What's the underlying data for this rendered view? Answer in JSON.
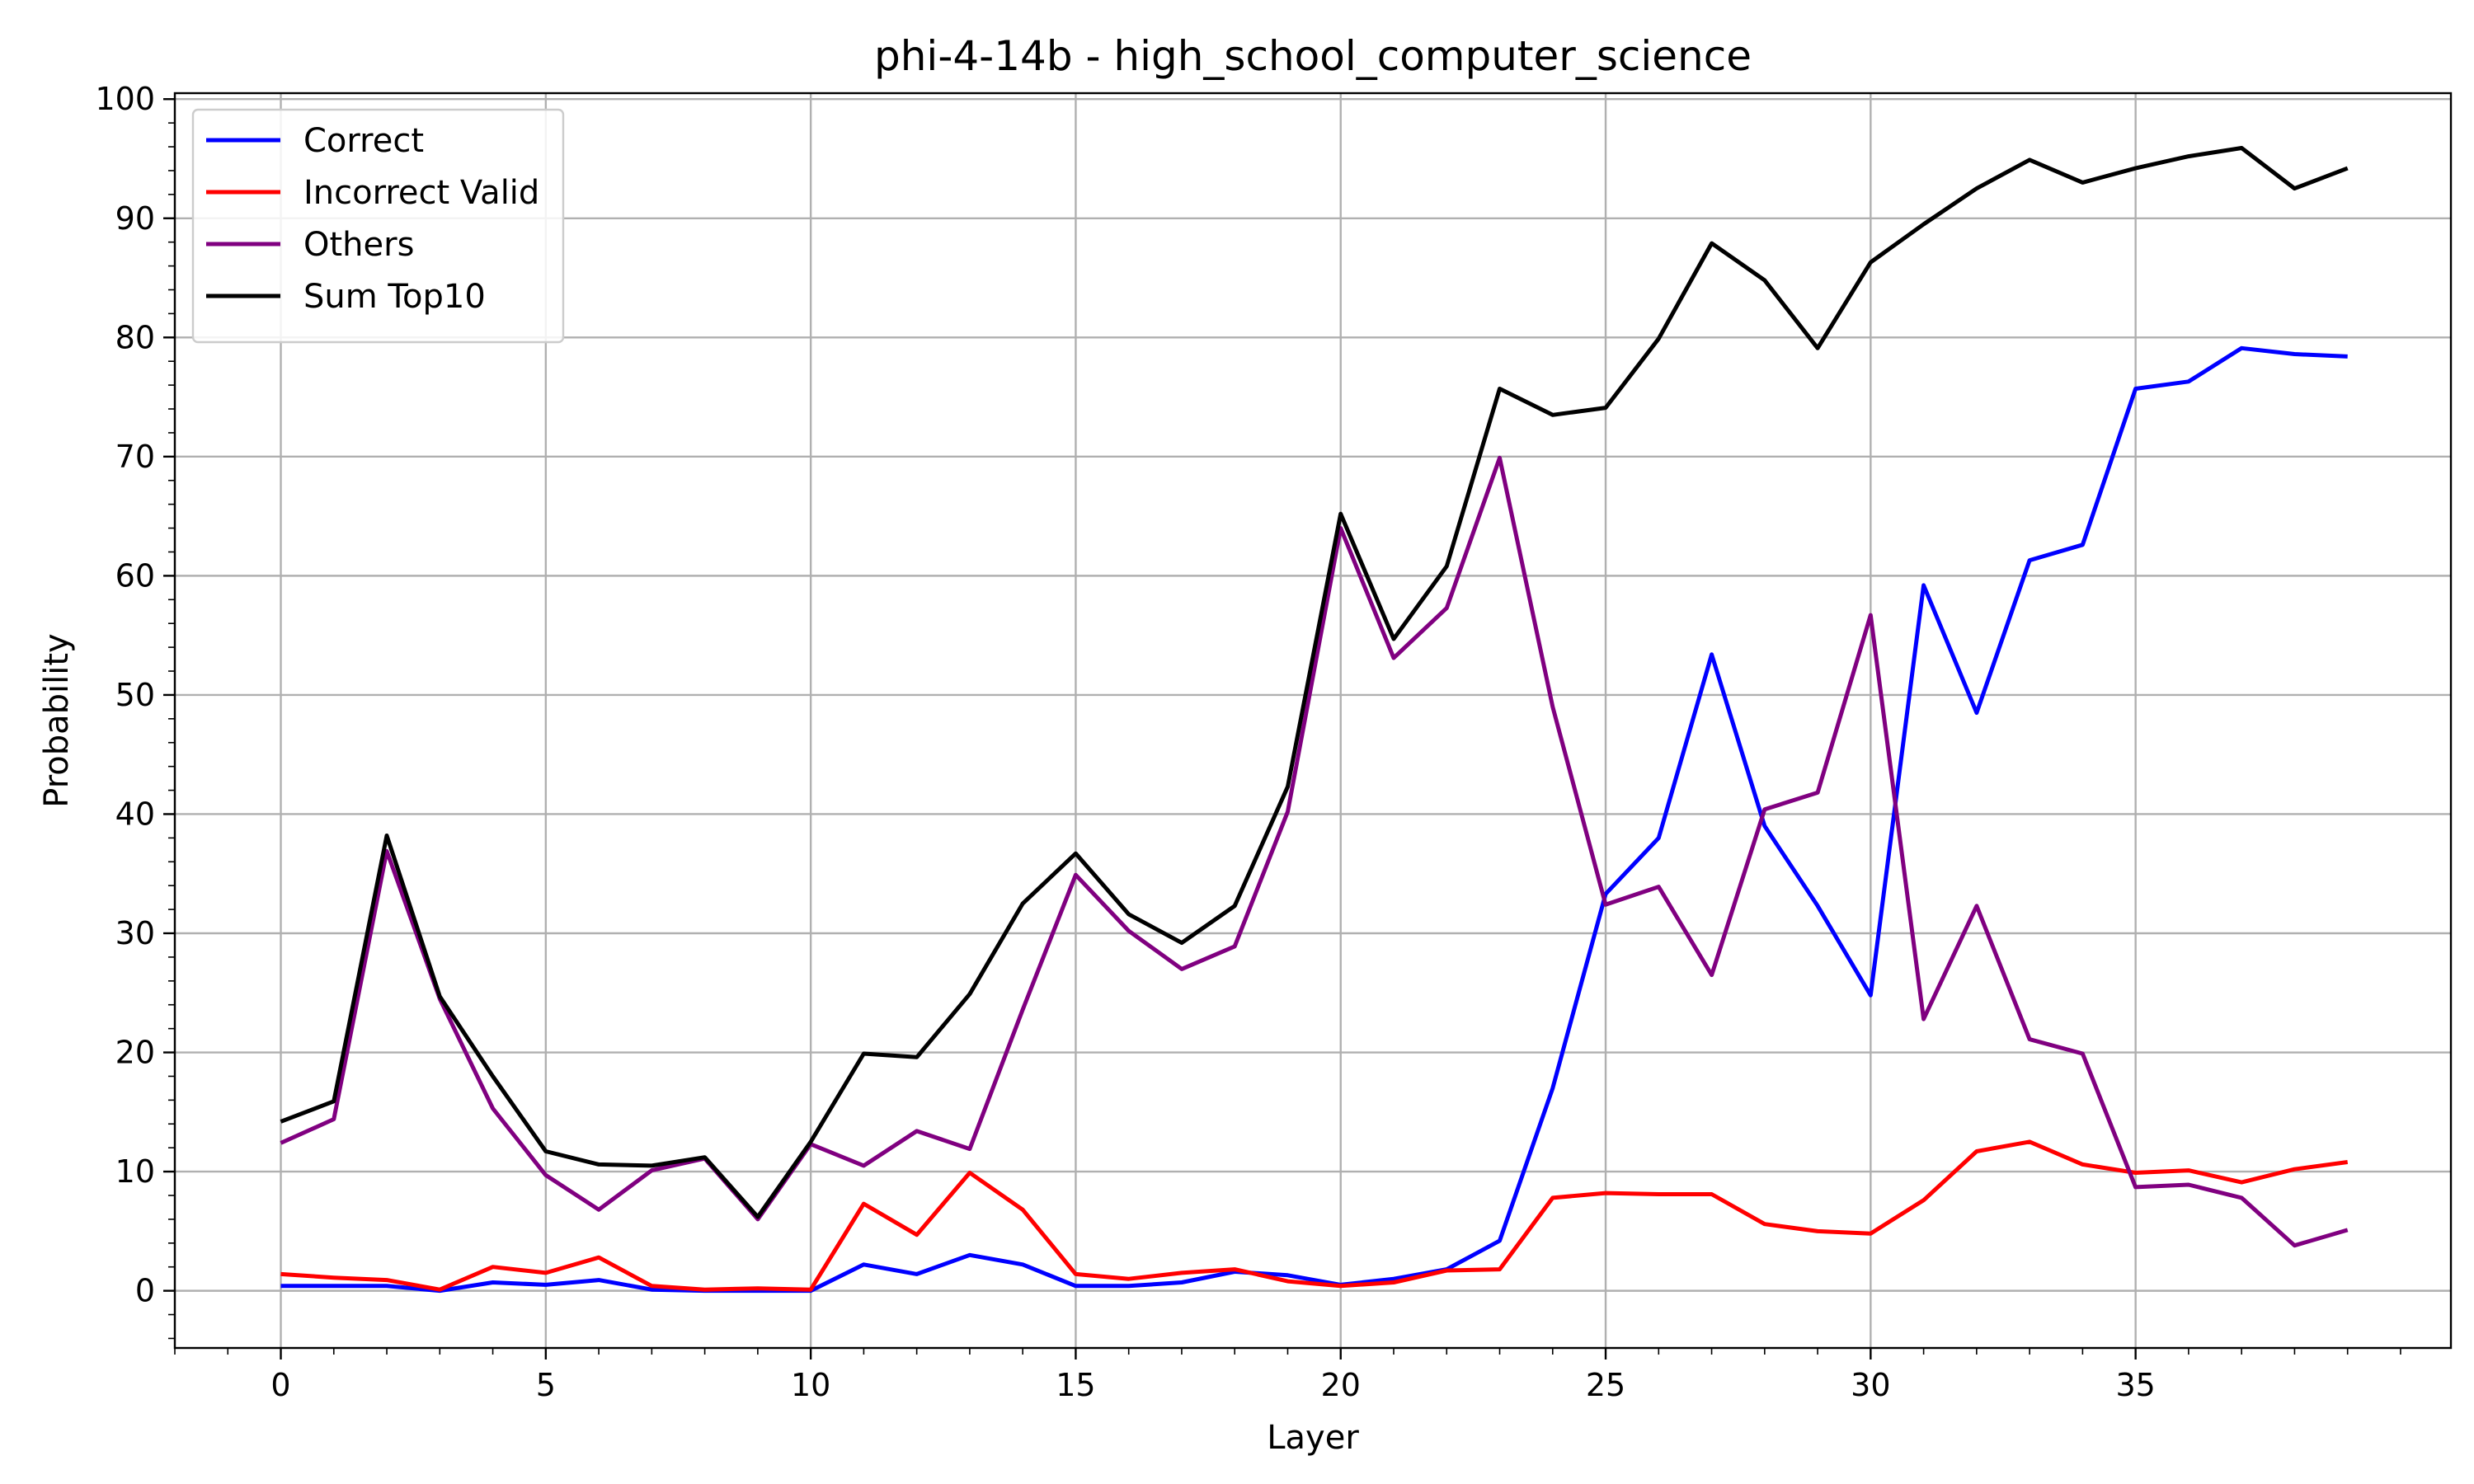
{
  "chart_data": {
    "type": "line",
    "title": "phi-4-14b - high_school_computer_science",
    "xlabel": "Layer",
    "ylabel": "Probability",
    "xlim": [
      -2.0,
      40.95
    ],
    "ylim": [
      -4.8,
      100.5
    ],
    "xticks": [
      0,
      5,
      10,
      15,
      20,
      25,
      30,
      35
    ],
    "yticks": [
      0,
      10,
      20,
      30,
      40,
      50,
      60,
      70,
      80,
      90,
      100
    ],
    "grid": true,
    "legend_position": "top-left",
    "x": [
      0,
      1,
      2,
      3,
      4,
      5,
      6,
      7,
      8,
      9,
      10,
      11,
      12,
      13,
      14,
      15,
      16,
      17,
      18,
      19,
      20,
      21,
      22,
      23,
      24,
      25,
      26,
      27,
      28,
      29,
      30,
      31,
      32,
      33,
      34,
      35,
      36,
      37,
      38,
      39
    ],
    "series": [
      {
        "name": "Correct",
        "color": "#0000ff",
        "values": [
          0.4,
          0.4,
          0.4,
          0.0,
          0.7,
          0.5,
          0.9,
          0.1,
          0.0,
          0.0,
          0.0,
          2.2,
          1.4,
          3.0,
          2.2,
          0.4,
          0.4,
          0.7,
          1.6,
          1.3,
          0.5,
          1.0,
          1.8,
          4.2,
          17.0,
          33.3,
          38.0,
          53.4,
          39.0,
          32.3,
          24.8,
          59.2,
          48.5,
          61.3,
          62.6,
          75.7,
          76.3,
          79.1,
          78.6,
          78.4
        ]
      },
      {
        "name": "Incorrect Valid",
        "color": "#ff0000",
        "values": [
          1.4,
          1.1,
          0.9,
          0.1,
          2.0,
          1.5,
          2.8,
          0.4,
          0.1,
          0.2,
          0.1,
          7.3,
          4.7,
          9.9,
          6.8,
          1.4,
          1.0,
          1.5,
          1.8,
          0.8,
          0.4,
          0.7,
          1.7,
          1.8,
          7.8,
          8.2,
          8.1,
          8.1,
          5.6,
          5.0,
          4.8,
          7.6,
          11.7,
          12.5,
          10.6,
          9.9,
          10.1,
          9.1,
          10.2,
          10.8
        ]
      },
      {
        "name": "Others",
        "color": "#800080",
        "values": [
          12.4,
          14.4,
          36.9,
          24.5,
          15.3,
          9.7,
          6.8,
          10.1,
          11.1,
          6.0,
          12.3,
          10.5,
          13.4,
          11.9,
          23.6,
          34.9,
          30.2,
          27.0,
          28.9,
          40.2,
          64.0,
          53.1,
          57.3,
          69.9,
          49.0,
          32.4,
          33.9,
          26.5,
          40.4,
          41.8,
          56.7,
          22.8,
          32.3,
          21.1,
          19.9,
          8.7,
          8.9,
          7.8,
          3.8,
          5.1
        ]
      },
      {
        "name": "Sum Top10",
        "color": "#000000",
        "values": [
          14.2,
          15.9,
          38.2,
          24.7,
          18.0,
          11.7,
          10.6,
          10.5,
          11.2,
          6.2,
          12.5,
          19.9,
          19.6,
          24.9,
          32.5,
          36.7,
          31.6,
          29.2,
          32.3,
          42.3,
          65.2,
          54.7,
          60.8,
          75.7,
          73.5,
          74.1,
          79.9,
          87.9,
          84.8,
          79.1,
          86.3,
          89.5,
          92.5,
          94.9,
          93.0,
          94.2,
          95.2,
          95.9,
          92.5,
          94.2
        ]
      }
    ]
  }
}
